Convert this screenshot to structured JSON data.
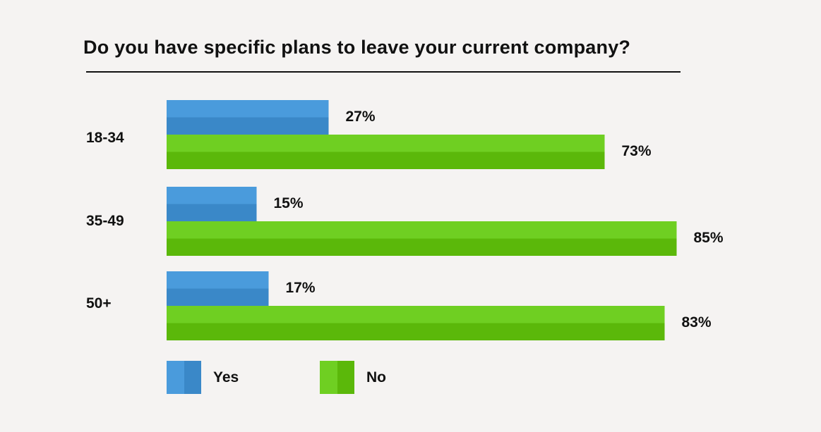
{
  "chart_data": {
    "type": "bar",
    "orientation": "horizontal",
    "title": "Do you have specific plans to leave your current company?",
    "categories": [
      "18-34",
      "35-49",
      "50+"
    ],
    "series": [
      {
        "name": "Yes",
        "values": [
          27,
          15,
          17
        ],
        "labels": [
          "27%",
          "15%",
          "17%"
        ],
        "color": "#4a9bdc",
        "color_dark": "#3a88c8"
      },
      {
        "name": "No",
        "values": [
          73,
          85,
          83
        ],
        "labels": [
          "73%",
          "85%",
          "83%"
        ],
        "color": "#6fcf22",
        "color_dark": "#5bb80a"
      }
    ],
    "unit": "%",
    "xlim": [
      0,
      100
    ],
    "grid": false,
    "legend_position": "bottom-left"
  }
}
